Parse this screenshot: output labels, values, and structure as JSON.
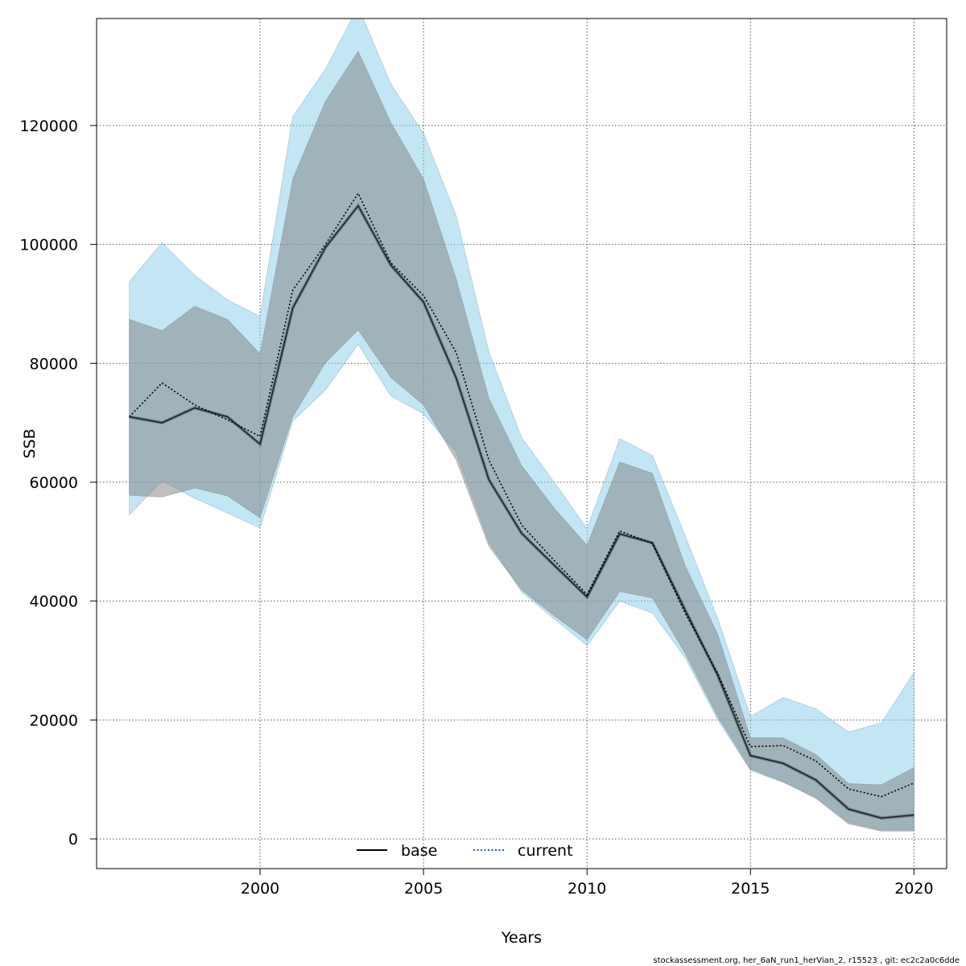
{
  "chart_data": {
    "type": "line",
    "title": "",
    "xlabel": "Years",
    "ylabel": "SSB",
    "xlim": [
      1995,
      2021
    ],
    "ylim": [
      -5000,
      138000
    ],
    "xticks": [
      2000,
      2005,
      2010,
      2015,
      2020
    ],
    "yticks": [
      0,
      20000,
      40000,
      60000,
      80000,
      100000,
      120000
    ],
    "grid": true,
    "legend": {
      "placement": "bottom-center",
      "entries": [
        "base",
        "current"
      ]
    },
    "colors": {
      "base_line": "#000000",
      "base_band": "#7f7f7f",
      "current_line": "#1f5fa0",
      "current_band": "#87ceeb"
    },
    "x": [
      1996,
      1997,
      1998,
      1999,
      2000,
      2001,
      2002,
      2003,
      2004,
      2005,
      2006,
      2007,
      2008,
      2009,
      2010,
      2011,
      2012,
      2013,
      2014,
      2015,
      2016,
      2017,
      2018,
      2019,
      2020
    ],
    "series": [
      {
        "name": "current",
        "values": [
          71000,
          76700,
          73000,
          70500,
          67700,
          92300,
          100000,
          108600,
          96900,
          91400,
          81800,
          63700,
          52800,
          46800,
          41100,
          51800,
          49700,
          38000,
          27800,
          15500,
          15700,
          13100,
          8400,
          7100,
          9400
        ],
        "lower": [
          54500,
          60200,
          57300,
          54800,
          52300,
          70300,
          75500,
          83200,
          74500,
          71500,
          65000,
          50000,
          41500,
          37000,
          32500,
          40000,
          38000,
          30500,
          20000,
          11500,
          9500,
          7000,
          2800,
          1500,
          1500
        ],
        "upper": [
          93700,
          100300,
          94800,
          90700,
          87900,
          121500,
          129500,
          140000,
          127000,
          118700,
          104800,
          81900,
          67500,
          60000,
          52200,
          67300,
          64500,
          51000,
          37000,
          20600,
          23800,
          21900,
          18000,
          19500,
          28000
        ]
      },
      {
        "name": "base",
        "values": [
          71000,
          70000,
          72500,
          71000,
          66400,
          89300,
          99500,
          106500,
          96500,
          90300,
          77500,
          60400,
          51400,
          46000,
          40700,
          51300,
          49800,
          38500,
          27500,
          14000,
          12700,
          9900,
          5000,
          3500,
          4000
        ],
        "lower": [
          57800,
          57500,
          59000,
          57700,
          54000,
          71000,
          80100,
          85600,
          77600,
          73000,
          63700,
          49200,
          41900,
          37500,
          33500,
          41600,
          40500,
          31200,
          20500,
          11700,
          9600,
          6800,
          2500,
          1300,
          1300
        ],
        "upper": [
          87400,
          85500,
          89600,
          87400,
          81600,
          111000,
          124100,
          132500,
          120500,
          111000,
          94200,
          74100,
          62800,
          55600,
          49400,
          63400,
          61500,
          46000,
          34400,
          17000,
          17000,
          14200,
          9300,
          9100,
          12000
        ]
      }
    ]
  },
  "footer": {
    "text": "stockassessment.org, her_6aN_run1_herVian_2, r15523 , git: ec2c2a0c6dde"
  }
}
